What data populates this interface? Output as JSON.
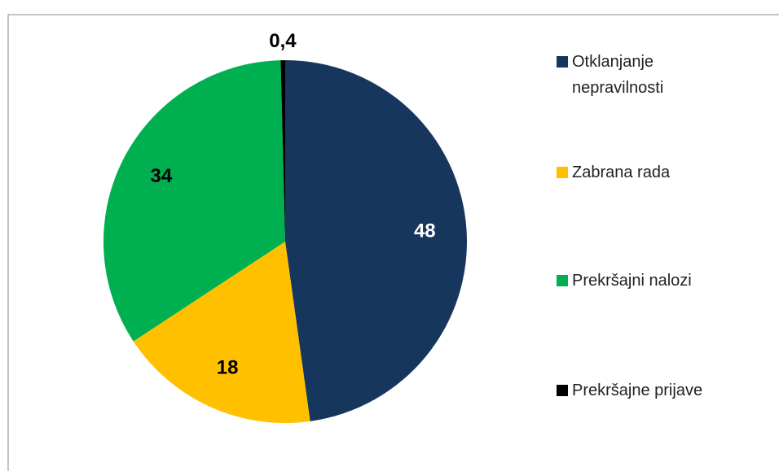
{
  "chart_data": {
    "type": "pie",
    "categories": [
      "Otklanjanje nepravilnosti",
      "Zabrana rada",
      "Prekršajni nalozi",
      "Prekršajne prijave"
    ],
    "values": [
      48,
      18,
      34,
      0.4
    ],
    "value_labels": [
      "48",
      "18",
      "34",
      "0,4"
    ],
    "colors": [
      "#17365d",
      "#ffc000",
      "#00b050",
      "#000000"
    ],
    "legend": "right"
  }
}
